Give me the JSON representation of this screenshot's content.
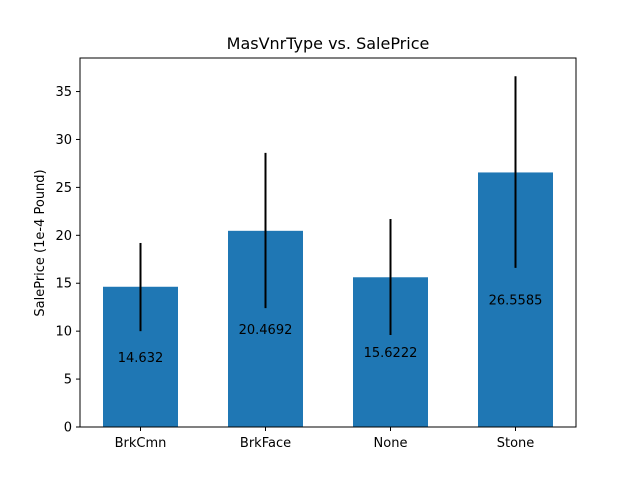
{
  "chart_data": {
    "type": "bar",
    "title": "MasVnrType vs. SalePrice",
    "xlabel": "",
    "ylabel": "SalePrice (1e-4 Pound)",
    "categories": [
      "BrkCmn",
      "BrkFace",
      "None",
      "Stone"
    ],
    "values": [
      14.632,
      20.4692,
      15.6222,
      26.5585
    ],
    "value_labels": [
      "14.632",
      "20.4692",
      "15.6222",
      "26.5585"
    ],
    "error_low": [
      10.0,
      12.4,
      9.6,
      16.6
    ],
    "error_high": [
      19.2,
      28.6,
      21.7,
      36.6
    ],
    "ylim": [
      0,
      38.5
    ],
    "yticks": [
      0,
      5,
      10,
      15,
      20,
      25,
      30,
      35
    ],
    "ytick_labels": [
      "0",
      "5",
      "10",
      "15",
      "20",
      "25",
      "30",
      "35"
    ],
    "grid": false,
    "legend": "none",
    "bar_color": "#1f77b4",
    "error_color": "#000000"
  }
}
